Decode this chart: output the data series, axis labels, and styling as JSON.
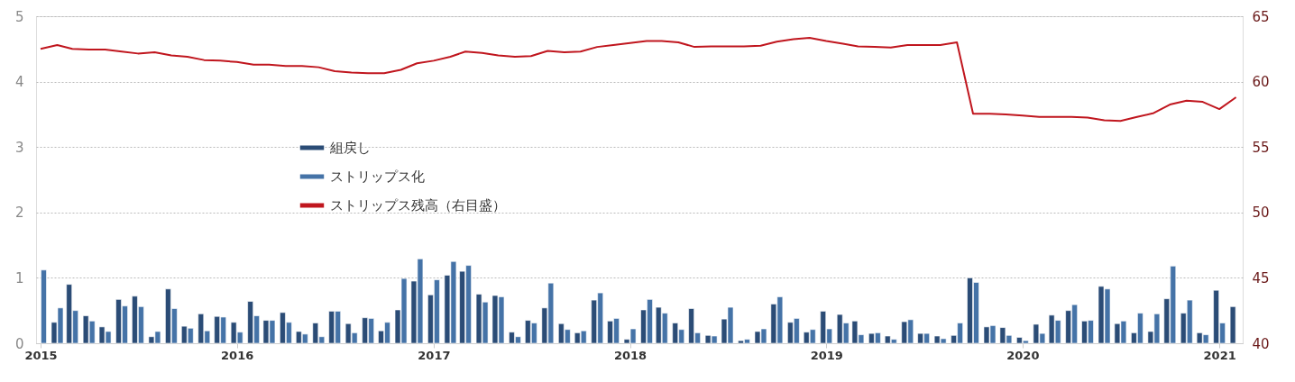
{
  "chart_data": {
    "type": "bar",
    "x": [
      "2015-01",
      "2015-02",
      "2015-03",
      "2015-04",
      "2015-05",
      "2015-06",
      "2015-07",
      "2015-08",
      "2015-09",
      "2015-10",
      "2015-11",
      "2015-12",
      "2016-01",
      "2016-02",
      "2016-03",
      "2016-04",
      "2016-05",
      "2016-06",
      "2016-07",
      "2016-08",
      "2016-09",
      "2016-10",
      "2016-11",
      "2016-12",
      "2017-01",
      "2017-02",
      "2017-03",
      "2017-04",
      "2017-05",
      "2017-06",
      "2017-07",
      "2017-08",
      "2017-09",
      "2017-10",
      "2017-11",
      "2017-12",
      "2018-01",
      "2018-02",
      "2018-03",
      "2018-04",
      "2018-05",
      "2018-06",
      "2018-07",
      "2018-08",
      "2018-09",
      "2018-10",
      "2018-11",
      "2018-12",
      "2019-01",
      "2019-02",
      "2019-03",
      "2019-04",
      "2019-05",
      "2019-06",
      "2019-07",
      "2019-08",
      "2019-09",
      "2019-10",
      "2019-11",
      "2019-12",
      "2020-01",
      "2020-02",
      "2020-03",
      "2020-04",
      "2020-05",
      "2020-06",
      "2020-07",
      "2020-08",
      "2020-09",
      "2020-10",
      "2020-11",
      "2020-12",
      "2021-01",
      "2021-02"
    ],
    "series": [
      {
        "name": "組戻し",
        "color": "#2b4c76",
        "values": [
          null,
          0.32,
          0.9,
          0.42,
          0.25,
          0.67,
          0.72,
          0.1,
          0.83,
          0.26,
          0.45,
          0.41,
          0.32,
          0.64,
          0.35,
          0.47,
          0.18,
          0.31,
          0.49,
          0.3,
          0.39,
          0.19,
          0.51,
          0.95,
          0.74,
          1.04,
          1.1,
          0.75,
          0.73,
          0.17,
          0.35,
          0.54,
          0.3,
          0.16,
          0.66,
          0.34,
          0.06,
          0.51,
          0.55,
          0.31,
          0.53,
          0.12,
          0.37,
          0.04,
          0.18,
          0.6,
          0.32,
          0.17,
          0.49,
          0.44,
          0.34,
          0.15,
          0.11,
          0.33,
          0.15,
          0.11,
          0.12,
          1.0,
          0.25,
          0.24,
          0.09,
          0.29,
          0.43,
          0.5,
          0.34,
          0.87,
          0.3,
          0.16,
          0.18,
          0.68,
          0.46,
          0.16,
          0.81,
          0.56
        ]
      },
      {
        "name": "ストリップス化",
        "color": "#4573a7",
        "values": [
          1.12,
          0.54,
          0.5,
          0.34,
          0.18,
          0.57,
          0.56,
          0.18,
          0.53,
          0.23,
          0.19,
          0.4,
          0.17,
          0.42,
          0.35,
          0.32,
          0.14,
          0.1,
          0.49,
          0.16,
          0.38,
          0.32,
          0.99,
          1.29,
          0.97,
          1.25,
          1.19,
          0.63,
          0.71,
          0.1,
          0.31,
          0.92,
          0.21,
          0.19,
          0.77,
          0.38,
          0.22,
          0.67,
          0.46,
          0.21,
          0.16,
          0.11,
          0.55,
          0.06,
          0.22,
          0.71,
          0.38,
          0.21,
          0.22,
          0.31,
          0.13,
          0.16,
          0.06,
          0.36,
          0.15,
          0.07,
          0.31,
          0.93,
          0.27,
          0.12,
          0.04,
          0.15,
          0.35,
          0.59,
          0.35,
          0.83,
          0.34,
          0.46,
          0.45,
          1.18,
          0.66,
          0.13,
          0.31,
          null
        ]
      },
      {
        "name": "ストリップス残高（右目盛）",
        "type": "line",
        "axis": "y2",
        "color": "#c0161e",
        "values": [
          62.5,
          62.8,
          62.5,
          62.45,
          62.45,
          62.3,
          62.15,
          62.25,
          62.0,
          61.9,
          61.65,
          61.6,
          61.5,
          61.3,
          61.3,
          61.2,
          61.2,
          61.1,
          60.8,
          60.7,
          60.65,
          60.65,
          60.9,
          61.4,
          61.6,
          61.9,
          62.3,
          62.2,
          62.0,
          61.9,
          61.95,
          62.35,
          62.25,
          62.3,
          62.65,
          62.8,
          62.95,
          63.1,
          63.1,
          63.0,
          62.65,
          62.7,
          62.7,
          62.7,
          62.75,
          63.05,
          63.25,
          63.35,
          63.1,
          62.9,
          62.7,
          62.65,
          62.6,
          62.8,
          62.8,
          62.8,
          63.0,
          57.55,
          57.55,
          57.5,
          57.4,
          57.3,
          57.3,
          57.3,
          57.25,
          57.05,
          57.0,
          57.3,
          57.6,
          58.25,
          58.55,
          58.45,
          57.9,
          58.8
        ]
      }
    ],
    "xlim": [
      "2015-01-01",
      "2021-02-05"
    ],
    "xticks": [
      "2015",
      "2016",
      "2017",
      "2018",
      "2019",
      "2020",
      "2021"
    ],
    "ylim": [
      0,
      5
    ],
    "yticks": [
      0,
      1,
      2,
      3,
      4,
      5
    ],
    "y2lim": [
      40,
      65
    ],
    "y2ticks": [
      40,
      45,
      50,
      55,
      60,
      65
    ],
    "grid": "y",
    "legend": "left"
  }
}
